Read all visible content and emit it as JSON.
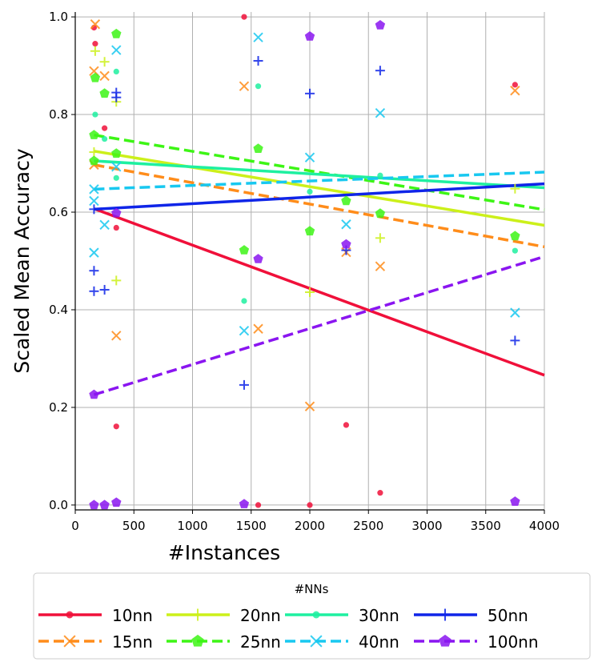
{
  "chart_data": {
    "type": "scatter",
    "xlabel": "#Instances",
    "ylabel": "Scaled Mean Accuracy",
    "xlim": [
      0,
      4000
    ],
    "ylim": [
      -0.01,
      1.01
    ],
    "x_ticks": [
      0,
      500,
      1000,
      1500,
      2000,
      2500,
      3000,
      3500,
      4000
    ],
    "x_tick_labels": [
      "0",
      "500",
      "1000",
      "1500",
      "2000",
      "2500",
      "3000",
      "3500",
      "4000"
    ],
    "y_ticks": [
      0.0,
      0.2,
      0.4,
      0.6,
      0.8,
      1.0
    ],
    "y_tick_labels": [
      "0.0",
      "0.2",
      "0.4",
      "0.6",
      "0.8",
      "1.0"
    ],
    "grid": true,
    "legend": {
      "title": "#NNs",
      "placement": "below"
    },
    "series": [
      {
        "name": "10nn",
        "color": "#f0103a",
        "marker": "dot",
        "dash": "solid",
        "trend": [
          [
            160,
            0.607
          ],
          [
            4000,
            0.266
          ]
        ],
        "points": [
          [
            160,
            0.978
          ],
          [
            170,
            0.945
          ],
          [
            250,
            0.772
          ],
          [
            350,
            0.568
          ],
          [
            350,
            0.161
          ],
          [
            1440,
            1.0
          ],
          [
            1560,
            0.0
          ],
          [
            2000,
            0.0
          ],
          [
            2310,
            0.164
          ],
          [
            2600,
            0.025
          ],
          [
            3750,
            0.861
          ]
        ]
      },
      {
        "name": "15nn",
        "color": "#ff8c1a",
        "marker": "x",
        "dash": "dashed",
        "trend": [
          [
            160,
            0.697
          ],
          [
            4000,
            0.529
          ]
        ],
        "points": [
          [
            170,
            0.985
          ],
          [
            160,
            0.889
          ],
          [
            250,
            0.879
          ],
          [
            160,
            0.697
          ],
          [
            350,
            0.347
          ],
          [
            1440,
            0.858
          ],
          [
            1560,
            0.361
          ],
          [
            2000,
            0.202
          ],
          [
            2310,
            0.518
          ],
          [
            2600,
            0.489
          ],
          [
            3750,
            0.849
          ]
        ]
      },
      {
        "name": "20nn",
        "color": "#ccf01a",
        "marker": "plus",
        "dash": "solid",
        "trend": [
          [
            160,
            0.725
          ],
          [
            4000,
            0.573
          ]
        ],
        "points": [
          [
            170,
            0.93
          ],
          [
            250,
            0.908
          ],
          [
            350,
            0.826
          ],
          [
            160,
            0.723
          ],
          [
            350,
            0.46
          ],
          [
            2000,
            0.436
          ],
          [
            2600,
            0.547
          ],
          [
            3750,
            0.648
          ]
        ]
      },
      {
        "name": "25nn",
        "color": "#3df515",
        "marker": "pentagon",
        "dash": "dashed",
        "trend": [
          [
            160,
            0.758
          ],
          [
            4000,
            0.605
          ]
        ],
        "points": [
          [
            350,
            0.965
          ],
          [
            170,
            0.875
          ],
          [
            250,
            0.843
          ],
          [
            160,
            0.758
          ],
          [
            350,
            0.72
          ],
          [
            160,
            0.705
          ],
          [
            1440,
            0.522
          ],
          [
            1560,
            0.73
          ],
          [
            2000,
            0.561
          ],
          [
            2310,
            0.623
          ],
          [
            2600,
            0.597
          ],
          [
            3750,
            0.551
          ]
        ]
      },
      {
        "name": "30nn",
        "color": "#1ef0a0",
        "marker": "dot",
        "dash": "solid",
        "trend": [
          [
            160,
            0.705
          ],
          [
            4000,
            0.65
          ]
        ],
        "points": [
          [
            350,
            0.888
          ],
          [
            170,
            0.8
          ],
          [
            250,
            0.75
          ],
          [
            350,
            0.67
          ],
          [
            1440,
            0.418
          ],
          [
            1560,
            0.858
          ],
          [
            2000,
            0.642
          ],
          [
            2600,
            0.675
          ],
          [
            3750,
            0.521
          ]
        ]
      },
      {
        "name": "40nn",
        "color": "#18c8f0",
        "marker": "x",
        "dash": "dashed",
        "trend": [
          [
            160,
            0.647
          ],
          [
            4000,
            0.682
          ]
        ],
        "points": [
          [
            350,
            0.932
          ],
          [
            350,
            0.693
          ],
          [
            160,
            0.647
          ],
          [
            160,
            0.623
          ],
          [
            250,
            0.574
          ],
          [
            160,
            0.517
          ],
          [
            1440,
            0.357
          ],
          [
            1560,
            0.958
          ],
          [
            2000,
            0.712
          ],
          [
            2310,
            0.575
          ],
          [
            2600,
            0.803
          ],
          [
            3750,
            0.394
          ]
        ]
      },
      {
        "name": "50nn",
        "color": "#0f25e8",
        "marker": "plus",
        "dash": "solid",
        "trend": [
          [
            160,
            0.606
          ],
          [
            4000,
            0.658
          ]
        ],
        "points": [
          [
            350,
            0.845
          ],
          [
            350,
            0.835
          ],
          [
            160,
            0.606
          ],
          [
            160,
            0.48
          ],
          [
            250,
            0.441
          ],
          [
            160,
            0.438
          ],
          [
            1440,
            0.246
          ],
          [
            1560,
            0.91
          ],
          [
            2000,
            0.843
          ],
          [
            2310,
            0.522
          ],
          [
            2600,
            0.89
          ],
          [
            3750,
            0.337
          ]
        ]
      },
      {
        "name": "100nn",
        "color": "#8a15f0",
        "marker": "pentagon",
        "dash": "dashed",
        "trend": [
          [
            160,
            0.226
          ],
          [
            4000,
            0.509
          ]
        ],
        "points": [
          [
            160,
            0.226
          ],
          [
            350,
            0.598
          ],
          [
            160,
            0.0
          ],
          [
            250,
            0.0
          ],
          [
            350,
            0.005
          ],
          [
            1440,
            0.002
          ],
          [
            1560,
            0.504
          ],
          [
            2000,
            0.96
          ],
          [
            2310,
            0.534
          ],
          [
            2600,
            0.983
          ],
          [
            3750,
            0.007
          ]
        ]
      }
    ]
  }
}
